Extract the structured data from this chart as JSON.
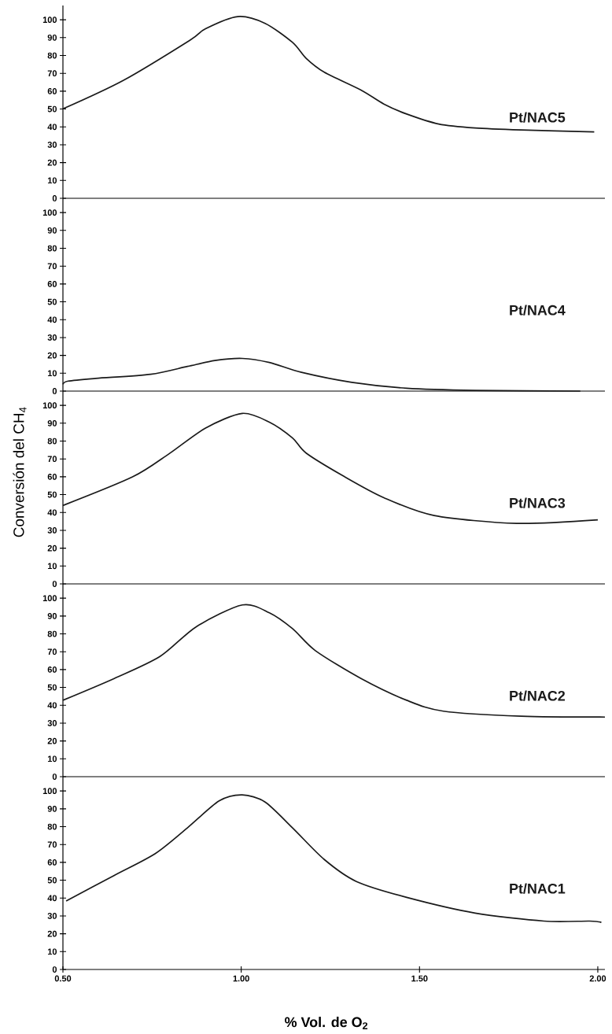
{
  "chart_data": [
    {
      "type": "line",
      "x": [
        0.5,
        0.669,
        0.855,
        0.9,
        0.99,
        1.067,
        1.144,
        1.182,
        1.233,
        1.336,
        1.4,
        1.464,
        1.554,
        1.656,
        1.785,
        1.99
      ],
      "series": [
        {
          "name": "Pt/NAC5",
          "color": "#1a1a1a",
          "values": [
            50.1,
            66,
            88.4,
            95,
            101.8,
            98,
            87.3,
            78.4,
            70.6,
            60.6,
            52.8,
            47.2,
            41.6,
            39.4,
            38.3,
            37.2
          ]
        }
      ],
      "xlim": [
        0.5,
        2.02
      ],
      "ylim": [
        0,
        108
      ],
      "yticks": [
        0,
        10,
        20,
        30,
        40,
        50,
        60,
        70,
        80,
        90,
        100
      ],
      "tick_labels": "y"
    },
    {
      "type": "line",
      "x": [
        0.5,
        0.515,
        0.592,
        0.746,
        0.849,
        0.926,
        1.003,
        1.079,
        1.169,
        1.31,
        1.464,
        1.656,
        1.951
      ],
      "series": [
        {
          "name": "Pt/NAC4",
          "color": "#1a1a1a",
          "values": [
            3.8,
            5.6,
            7.1,
            9.4,
            13.8,
            17.1,
            18.3,
            16,
            10.5,
            4.9,
            1.6,
            0.4,
            0
          ]
        }
      ],
      "xlim": [
        0.5,
        2.02
      ],
      "ylim": [
        0,
        108
      ],
      "yticks": [
        0,
        10,
        20,
        30,
        40,
        50,
        60,
        70,
        80,
        90,
        100
      ],
      "tick_labels": "y"
    },
    {
      "type": "line",
      "ylabel": "Conversión del CH$_{4}$",
      "x": [
        0.5,
        0.695,
        0.797,
        0.9,
        1.003,
        1.079,
        1.144,
        1.182,
        1.285,
        1.4,
        1.541,
        1.772,
        2.0
      ],
      "series": [
        {
          "name": "Pt/NAC3",
          "color": "#1a1a1a",
          "values": [
            43.9,
            59.9,
            72.8,
            87.3,
            95.5,
            90.6,
            81.7,
            73.3,
            60.6,
            48.3,
            38.3,
            33.9,
            35.9
          ]
        }
      ],
      "xlim": [
        0.5,
        2.02
      ],
      "ylim": [
        0,
        108
      ],
      "yticks": [
        0,
        10,
        20,
        30,
        40,
        50,
        60,
        70,
        80,
        90,
        100
      ],
      "tick_labels": "y"
    },
    {
      "type": "line",
      "x": [
        0.5,
        0.644,
        0.772,
        0.874,
        1.003,
        1.079,
        1.144,
        1.208,
        1.336,
        1.464,
        1.567,
        1.785,
        2.02
      ],
      "series": [
        {
          "name": "Pt/NAC2",
          "color": "#1a1a1a",
          "values": [
            42.8,
            55,
            67.3,
            84,
            96.2,
            91.8,
            82.9,
            70.6,
            55,
            42.8,
            36.7,
            33.9,
            33.4
          ]
        }
      ],
      "xlim": [
        0.5,
        2.02
      ],
      "ylim": [
        0,
        108
      ],
      "yticks": [
        0,
        10,
        20,
        30,
        40,
        50,
        60,
        70,
        80,
        90,
        100
      ],
      "tick_labels": "y"
    },
    {
      "type": "line",
      "xlabel": "% Vol. de O$_{2}$",
      "x": [
        0.509,
        0.644,
        0.759,
        0.849,
        0.938,
        1.003,
        1.067,
        1.144,
        1.233,
        1.323,
        1.464,
        1.656,
        1.849,
        1.977,
        2.01
      ],
      "series": [
        {
          "name": "Pt/NAC1",
          "color": "#1a1a1a",
          "values": [
            38.3,
            52.7,
            64.9,
            79.3,
            94.4,
            97.8,
            93.8,
            79.3,
            61.6,
            49.3,
            40.4,
            31.6,
            27.1,
            27.1,
            26.4
          ]
        }
      ],
      "xlim": [
        0.5,
        2.02
      ],
      "ylim": [
        0,
        108
      ],
      "yticks": [
        0,
        10,
        20,
        30,
        40,
        50,
        60,
        70,
        80,
        90,
        100
      ],
      "xticks": [
        {
          "value": 0.5,
          "label": "0.50"
        },
        {
          "value": 1.0,
          "label": "1.00"
        },
        {
          "value": 1.5,
          "label": "1.50"
        },
        {
          "value": 2.0,
          "label": "2.00"
        }
      ]
    }
  ]
}
